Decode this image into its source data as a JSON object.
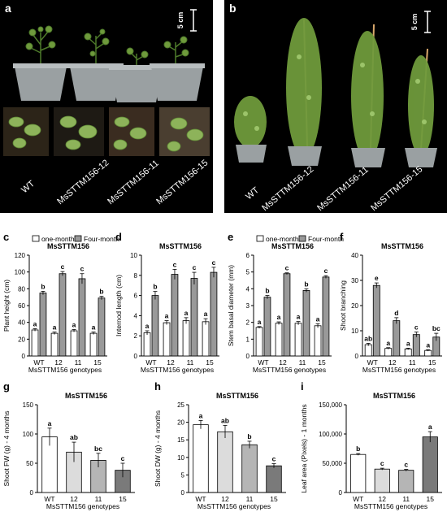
{
  "panels": {
    "a": {
      "letter": "a",
      "scale": "5 cm",
      "labels": [
        "WT",
        "MsSTTM156-12",
        "MsSTTM156-11",
        "MsSTTM156-15"
      ]
    },
    "b": {
      "letter": "b",
      "scale": "5 cm",
      "labels": [
        "WT",
        "MsSTTM156-12",
        "MsSTTM156-11",
        "MsSTTM156-15"
      ]
    }
  },
  "legend": {
    "one_month": "one-month",
    "four_month": "Four-month"
  },
  "colors": {
    "photo_bg": "#000000",
    "one_month_bar": "#ffffff",
    "four_month_bar": "#999999",
    "g_WT": "#ffffff",
    "g_12": "#dcdcdc",
    "g_11": "#b5b5b5",
    "g_15": "#7a7a7a",
    "pot": "#9aa0a2",
    "plant": "#6f9a3c",
    "stake": "#d9a86c"
  },
  "chart_data": [
    {
      "id": "c",
      "letter": "c",
      "type": "bar",
      "title": "MsSTTM156",
      "xlabel": "MsSTTM156 genotypes",
      "ylabel": "Plant height (cm)",
      "categories": [
        "WT",
        "12",
        "11",
        "15"
      ],
      "ylim": [
        0,
        120
      ],
      "yticks": [
        0,
        20,
        40,
        60,
        80,
        100,
        120
      ],
      "legend": "top",
      "series": [
        {
          "name": "one-month",
          "values": [
            31,
            27,
            30,
            27
          ],
          "errors": [
            1.5,
            1.5,
            1.5,
            1.5
          ],
          "letters": [
            "a",
            "a",
            "a",
            "a"
          ]
        },
        {
          "name": "Four-month",
          "values": [
            75,
            98,
            92,
            69
          ],
          "errors": [
            2,
            2.5,
            6,
            2
          ],
          "letters": [
            "b",
            "c",
            "c",
            "b"
          ]
        }
      ]
    },
    {
      "id": "d",
      "letter": "d",
      "type": "bar",
      "title": "MsSTTM156",
      "xlabel": "MsSTTM156 genotypes",
      "ylabel": "Internod length (cm)",
      "categories": [
        "WT",
        "12",
        "11",
        "15"
      ],
      "ylim": [
        0,
        10
      ],
      "yticks": [
        0,
        2,
        4,
        6,
        8,
        10
      ],
      "series": [
        {
          "name": "one-month",
          "values": [
            2.3,
            3.3,
            3.5,
            3.4
          ],
          "errors": [
            0.2,
            0.2,
            0.3,
            0.3
          ],
          "letters": [
            "a",
            "a",
            "a",
            "a"
          ]
        },
        {
          "name": "Four-month",
          "values": [
            6.0,
            8.1,
            7.7,
            8.3
          ],
          "errors": [
            0.4,
            0.5,
            0.6,
            0.5
          ],
          "letters": [
            "b",
            "c",
            "c",
            "c"
          ]
        }
      ]
    },
    {
      "id": "e",
      "letter": "e",
      "type": "bar",
      "title": "MsSTTM156",
      "xlabel": "MsSTTM156 genotypes",
      "ylabel": "Stem basal diameter (mm)",
      "categories": [
        "WT",
        "12",
        "11",
        "15"
      ],
      "ylim": [
        0,
        6
      ],
      "yticks": [
        0,
        1,
        2,
        3,
        4,
        5,
        6
      ],
      "legend": "top",
      "series": [
        {
          "name": "one-month",
          "values": [
            1.7,
            1.95,
            1.95,
            1.8
          ],
          "errors": [
            0.05,
            0.08,
            0.1,
            0.12
          ],
          "letters": [
            "a",
            "a",
            "a",
            "a"
          ]
        },
        {
          "name": "Four-month",
          "values": [
            3.5,
            4.9,
            3.9,
            4.7
          ],
          "errors": [
            0.1,
            0.05,
            0.1,
            0.08
          ],
          "letters": [
            "b",
            "c",
            "b",
            "c"
          ]
        }
      ]
    },
    {
      "id": "f",
      "letter": "f",
      "type": "bar",
      "title": "MsSTTM156",
      "xlabel": "MsSTTM156 genotypes",
      "ylabel": "Shoot branching",
      "categories": [
        "WT",
        "12",
        "11",
        "15"
      ],
      "ylim": [
        0,
        40
      ],
      "yticks": [
        0,
        10,
        20,
        30,
        40
      ],
      "series": [
        {
          "name": "one-month",
          "values": [
            4.5,
            3.0,
            2.8,
            2.2
          ],
          "errors": [
            0.5,
            0.3,
            0.3,
            0.3
          ],
          "letters": [
            "ab",
            "a",
            "a",
            "a"
          ]
        },
        {
          "name": "Four-month",
          "values": [
            28,
            14,
            8.5,
            7.5
          ],
          "errors": [
            1,
            1.2,
            1,
            1.5
          ],
          "letters": [
            "e",
            "d",
            "c",
            "bc"
          ]
        }
      ]
    },
    {
      "id": "g",
      "letter": "g",
      "type": "bar",
      "title": "MsSTTM156",
      "xlabel": "MsSTTM156 genotypes",
      "ylabel": "Shoot FW (g) - 4 months",
      "categories": [
        "WT",
        "12",
        "11",
        "15"
      ],
      "ylim": [
        0,
        150
      ],
      "yticks": [
        0,
        50,
        100,
        150
      ],
      "series": [
        {
          "values": [
            95,
            69,
            55,
            38
          ],
          "errors": [
            15,
            17,
            12,
            12
          ],
          "letters": [
            "a",
            "ab",
            "bc",
            "c"
          ]
        }
      ]
    },
    {
      "id": "h",
      "letter": "h",
      "type": "bar",
      "title": "MsSTTM156",
      "xlabel": "MsSTTM156 genotypes",
      "ylabel": "Shoot DW (g) - 4 months",
      "categories": [
        "WT",
        "12",
        "11",
        "15"
      ],
      "ylim": [
        0,
        25
      ],
      "yticks": [
        0,
        5,
        10,
        15,
        20,
        25
      ],
      "series": [
        {
          "values": [
            19.3,
            17.3,
            13.6,
            7.6
          ],
          "errors": [
            1.2,
            1.8,
            1.0,
            0.6
          ],
          "letters": [
            "a",
            "ab",
            "b",
            "c"
          ]
        }
      ]
    },
    {
      "id": "i",
      "letter": "i",
      "type": "bar",
      "title": "MsSTTM156",
      "xlabel": "MsSTTM156 genotypes",
      "ylabel": "Leaf area (Pixels) - 1 months",
      "categories": [
        "WT",
        "12",
        "11",
        "15"
      ],
      "ylim": [
        0,
        150000
      ],
      "yticks": [
        0,
        50000,
        100000,
        150000
      ],
      "yticklabels": [
        "0",
        "50,000",
        "100,000",
        "150,000"
      ],
      "series": [
        {
          "values": [
            65000,
            40000,
            38000,
            95000
          ],
          "errors": [
            1500,
            1500,
            1500,
            9000
          ],
          "letters": [
            "b",
            "c",
            "c",
            "a"
          ]
        }
      ]
    }
  ]
}
